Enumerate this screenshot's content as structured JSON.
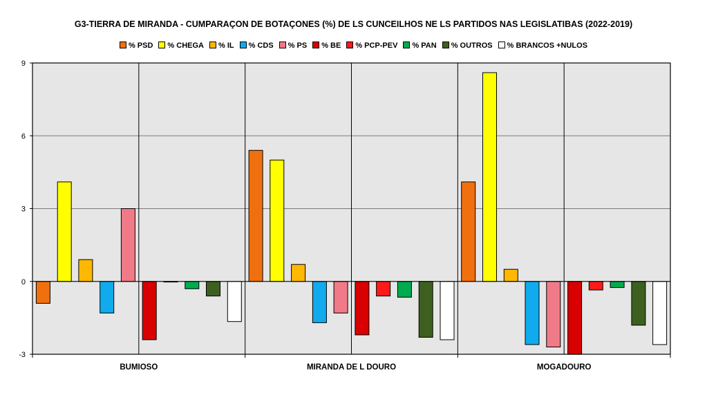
{
  "chart_data": {
    "type": "bar",
    "title": "G3-TIERRA DE MIRANDA - CUMPARAÇON DE BOTAÇONES (%) DE LS CUNCEILHOS NE LS PARTIDOS NAS LEGISLATIBAS (2022-2019)",
    "categories": [
      "BUMIOSO",
      "MIRANDA DE L DOURO",
      "MOGADOURO"
    ],
    "ylim": [
      -3,
      9
    ],
    "yticks": [
      -3,
      0,
      3,
      6,
      9
    ],
    "ytick_labels": [
      "-3",
      "0",
      "3",
      "6",
      "9"
    ],
    "grid": true,
    "legend_position": "top",
    "series": [
      {
        "name": "% PSD",
        "color": "#f07010",
        "values": [
          -0.9,
          5.4,
          4.1
        ]
      },
      {
        "name": "% CHEGA",
        "color": "#ffff00",
        "values": [
          4.1,
          5.0,
          8.6
        ]
      },
      {
        "name": "% IL",
        "color": "#ffb800",
        "values": [
          0.9,
          0.7,
          0.5
        ]
      },
      {
        "name": "% CDS",
        "color": "#10aaee",
        "values": [
          -1.3,
          -1.7,
          -2.6
        ]
      },
      {
        "name": "% PS",
        "color": "#f07a88",
        "values": [
          3.0,
          -1.3,
          -2.7
        ]
      },
      {
        "name": "% BE",
        "color": "#d80000",
        "values": [
          -2.4,
          -2.2,
          -3.0
        ]
      },
      {
        "name": "% PCP-PEV",
        "color": "#ff1a1a",
        "values": [
          0.0,
          -0.6,
          -0.35
        ]
      },
      {
        "name": "% PAN",
        "color": "#00aa50",
        "values": [
          -0.3,
          -0.65,
          -0.25
        ]
      },
      {
        "name": "% OUTROS",
        "color": "#3d6020",
        "values": [
          -0.6,
          -2.3,
          -1.8
        ]
      },
      {
        "name": "% BRANCOS +NULOS",
        "color": "#ffffff",
        "values": [
          -1.65,
          -2.4,
          -2.6
        ]
      }
    ]
  }
}
